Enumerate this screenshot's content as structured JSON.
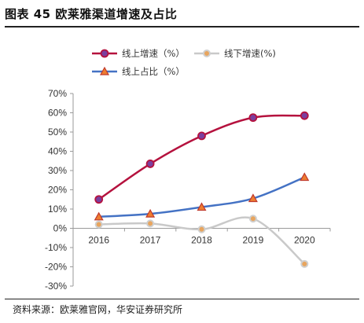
{
  "header": {
    "title": "图表 45 欧莱雅渠道增速及占比"
  },
  "footer": {
    "source": "资料来源：欧莱雅官网，华安证券研究所"
  },
  "chart_data": {
    "type": "line",
    "title": "图表 45 欧莱雅渠道增速及占比",
    "xlabel": "",
    "ylabel": "",
    "x": [
      "2016",
      "2017",
      "2018",
      "2019",
      "2020"
    ],
    "ylim": [
      -30,
      70
    ],
    "yticks": [
      -30,
      -20,
      -10,
      0,
      10,
      20,
      30,
      40,
      50,
      60,
      70
    ],
    "ytick_labels": [
      "-30%",
      "-20%",
      "-10%",
      "0%",
      "10%",
      "20%",
      "30%",
      "40%",
      "50%",
      "60%",
      "70%"
    ],
    "grid": false,
    "legend_position": "top",
    "series": [
      {
        "name": "线上增速（%）",
        "values": [
          15,
          33.5,
          48,
          57.5,
          58.5
        ],
        "color": "#b5123e",
        "marker": "circle-purple",
        "smooth": true
      },
      {
        "name": "线下增速(%)",
        "values": [
          2,
          2.5,
          -0.5,
          5,
          -18.5
        ],
        "color": "#c9c9c9",
        "marker": "circle-tan",
        "smooth": true
      },
      {
        "name": "线上占比（%）",
        "values": [
          6,
          7.5,
          11,
          15.5,
          26.5
        ],
        "color": "#4472c4",
        "marker": "triangle-orange",
        "smooth": true
      }
    ]
  }
}
